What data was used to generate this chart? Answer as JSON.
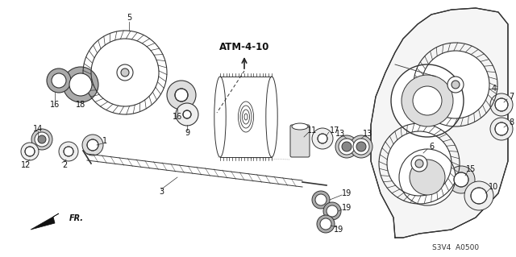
{
  "bg_color": "#ffffff",
  "line_color": "#222222",
  "doc_code": "S3V4  A0500",
  "page_ref": "ATM-4-10",
  "figsize": [
    6.4,
    3.19
  ],
  "dpi": 100
}
